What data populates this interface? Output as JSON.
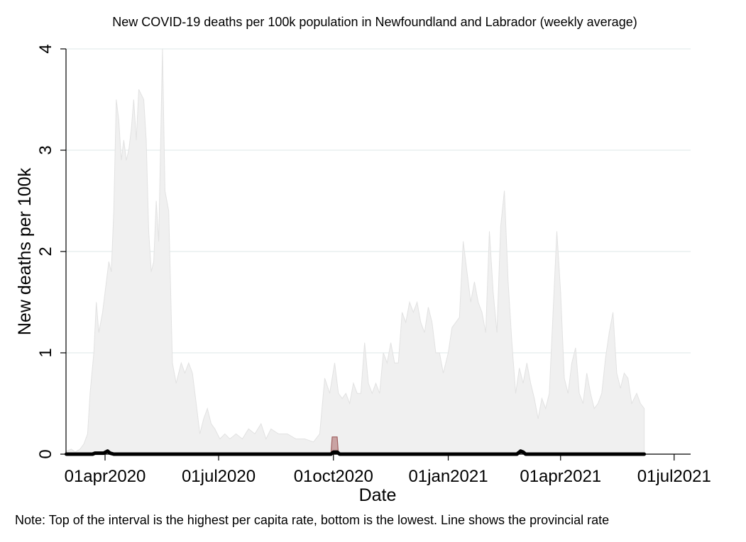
{
  "chart_data": {
    "type": "area",
    "title": "New COVID-19 deaths per 100k population in Newfoundland and Labrador (weekly average)",
    "xlabel": "Date",
    "ylabel": "New deaths per 100k",
    "note": "Note: Top of the interval is the highest per capita rate, bottom is the lowest. Line shows the provincial rate",
    "xlim": [
      "2020-03-01",
      "2021-07-01"
    ],
    "ylim": [
      0,
      4
    ],
    "grid": true,
    "x_ticks": [
      {
        "date": "2020-04-01",
        "label": "01apr2020"
      },
      {
        "date": "2020-07-01",
        "label": "01jul2020"
      },
      {
        "date": "2020-10-01",
        "label": "01oct2020"
      },
      {
        "date": "2021-01-01",
        "label": "01jan2021"
      },
      {
        "date": "2021-04-01",
        "label": "01apr2021"
      },
      {
        "date": "2021-07-01",
        "label": "01jul2021"
      }
    ],
    "y_ticks": [
      {
        "value": 0,
        "label": "0"
      },
      {
        "value": 1,
        "label": "1"
      },
      {
        "value": 2,
        "label": "2"
      },
      {
        "value": 3,
        "label": "3"
      },
      {
        "value": 4,
        "label": "4"
      }
    ],
    "series": [
      {
        "role": "interval-max",
        "color": "#f0f0f0",
        "points": [
          [
            "2020-03-01",
            0.03
          ],
          [
            "2020-03-05",
            0.05
          ],
          [
            "2020-03-08",
            0.02
          ],
          [
            "2020-03-12",
            0.05
          ],
          [
            "2020-03-15",
            0.1
          ],
          [
            "2020-03-18",
            0.2
          ],
          [
            "2020-03-20",
            0.6
          ],
          [
            "2020-03-23",
            1.0
          ],
          [
            "2020-03-25",
            1.5
          ],
          [
            "2020-03-27",
            1.2
          ],
          [
            "2020-03-30",
            1.4
          ],
          [
            "2020-04-02",
            1.7
          ],
          [
            "2020-04-04",
            1.9
          ],
          [
            "2020-04-06",
            1.8
          ],
          [
            "2020-04-08",
            2.4
          ],
          [
            "2020-04-10",
            3.5
          ],
          [
            "2020-04-12",
            3.3
          ],
          [
            "2020-04-14",
            2.9
          ],
          [
            "2020-04-16",
            3.1
          ],
          [
            "2020-04-18",
            2.9
          ],
          [
            "2020-04-20",
            3.0
          ],
          [
            "2020-04-22",
            3.2
          ],
          [
            "2020-04-24",
            3.5
          ],
          [
            "2020-04-26",
            3.1
          ],
          [
            "2020-04-28",
            3.6
          ],
          [
            "2020-05-02",
            3.5
          ],
          [
            "2020-05-04",
            3.1
          ],
          [
            "2020-05-06",
            2.2
          ],
          [
            "2020-05-08",
            1.8
          ],
          [
            "2020-05-10",
            1.9
          ],
          [
            "2020-05-12",
            2.5
          ],
          [
            "2020-05-14",
            2.1
          ],
          [
            "2020-05-17",
            4.0
          ],
          [
            "2020-05-19",
            2.6
          ],
          [
            "2020-05-22",
            2.4
          ],
          [
            "2020-05-25",
            0.9
          ],
          [
            "2020-05-28",
            0.7
          ],
          [
            "2020-06-01",
            0.9
          ],
          [
            "2020-06-04",
            0.8
          ],
          [
            "2020-06-07",
            0.9
          ],
          [
            "2020-06-10",
            0.8
          ],
          [
            "2020-06-13",
            0.5
          ],
          [
            "2020-06-16",
            0.2
          ],
          [
            "2020-06-19",
            0.35
          ],
          [
            "2020-06-22",
            0.45
          ],
          [
            "2020-06-25",
            0.3
          ],
          [
            "2020-06-28",
            0.25
          ],
          [
            "2020-07-02",
            0.15
          ],
          [
            "2020-07-06",
            0.2
          ],
          [
            "2020-07-10",
            0.15
          ],
          [
            "2020-07-15",
            0.2
          ],
          [
            "2020-07-20",
            0.15
          ],
          [
            "2020-07-25",
            0.25
          ],
          [
            "2020-07-30",
            0.2
          ],
          [
            "2020-08-04",
            0.3
          ],
          [
            "2020-08-08",
            0.15
          ],
          [
            "2020-08-12",
            0.25
          ],
          [
            "2020-08-18",
            0.2
          ],
          [
            "2020-08-25",
            0.2
          ],
          [
            "2020-09-01",
            0.15
          ],
          [
            "2020-09-08",
            0.15
          ],
          [
            "2020-09-15",
            0.12
          ],
          [
            "2020-09-20",
            0.2
          ],
          [
            "2020-09-24",
            0.75
          ],
          [
            "2020-09-28",
            0.6
          ],
          [
            "2020-10-02",
            0.9
          ],
          [
            "2020-10-05",
            0.6
          ],
          [
            "2020-10-08",
            0.55
          ],
          [
            "2020-10-11",
            0.6
          ],
          [
            "2020-10-14",
            0.5
          ],
          [
            "2020-10-17",
            0.7
          ],
          [
            "2020-10-20",
            0.6
          ],
          [
            "2020-10-23",
            0.6
          ],
          [
            "2020-10-26",
            1.1
          ],
          [
            "2020-10-29",
            0.7
          ],
          [
            "2020-11-01",
            0.6
          ],
          [
            "2020-11-04",
            0.7
          ],
          [
            "2020-11-07",
            0.6
          ],
          [
            "2020-11-10",
            1.0
          ],
          [
            "2020-11-13",
            0.9
          ],
          [
            "2020-11-16",
            1.1
          ],
          [
            "2020-11-19",
            0.9
          ],
          [
            "2020-11-22",
            0.9
          ],
          [
            "2020-11-25",
            1.4
          ],
          [
            "2020-11-28",
            1.3
          ],
          [
            "2020-12-01",
            1.5
          ],
          [
            "2020-12-04",
            1.4
          ],
          [
            "2020-12-07",
            1.5
          ],
          [
            "2020-12-10",
            1.3
          ],
          [
            "2020-12-13",
            1.2
          ],
          [
            "2020-12-16",
            1.45
          ],
          [
            "2020-12-19",
            1.3
          ],
          [
            "2020-12-22",
            1.0
          ],
          [
            "2020-12-25",
            1.0
          ],
          [
            "2020-12-28",
            0.8
          ],
          [
            "2021-01-01",
            1.0
          ],
          [
            "2021-01-04",
            1.25
          ],
          [
            "2021-01-07",
            1.3
          ],
          [
            "2021-01-10",
            1.35
          ],
          [
            "2021-01-13",
            2.1
          ],
          [
            "2021-01-16",
            1.8
          ],
          [
            "2021-01-19",
            1.5
          ],
          [
            "2021-01-22",
            1.7
          ],
          [
            "2021-01-25",
            1.5
          ],
          [
            "2021-01-28",
            1.4
          ],
          [
            "2021-01-31",
            1.2
          ],
          [
            "2021-02-03",
            2.2
          ],
          [
            "2021-02-06",
            1.6
          ],
          [
            "2021-02-09",
            1.2
          ],
          [
            "2021-02-12",
            2.25
          ],
          [
            "2021-02-15",
            2.6
          ],
          [
            "2021-02-18",
            1.7
          ],
          [
            "2021-02-21",
            1.1
          ],
          [
            "2021-02-24",
            0.6
          ],
          [
            "2021-02-27",
            0.85
          ],
          [
            "2021-03-02",
            0.7
          ],
          [
            "2021-03-05",
            0.9
          ],
          [
            "2021-03-08",
            0.7
          ],
          [
            "2021-03-11",
            0.55
          ],
          [
            "2021-03-14",
            0.35
          ],
          [
            "2021-03-17",
            0.55
          ],
          [
            "2021-03-20",
            0.45
          ],
          [
            "2021-03-23",
            0.6
          ],
          [
            "2021-03-26",
            1.4
          ],
          [
            "2021-03-29",
            2.2
          ],
          [
            "2021-04-01",
            1.6
          ],
          [
            "2021-04-04",
            0.75
          ],
          [
            "2021-04-07",
            0.6
          ],
          [
            "2021-04-10",
            0.9
          ],
          [
            "2021-04-13",
            1.05
          ],
          [
            "2021-04-16",
            0.6
          ],
          [
            "2021-04-19",
            0.5
          ],
          [
            "2021-04-22",
            0.8
          ],
          [
            "2021-04-25",
            0.6
          ],
          [
            "2021-04-28",
            0.45
          ],
          [
            "2021-05-01",
            0.5
          ],
          [
            "2021-05-04",
            0.6
          ],
          [
            "2021-05-07",
            0.95
          ],
          [
            "2021-05-10",
            1.2
          ],
          [
            "2021-05-13",
            1.4
          ],
          [
            "2021-05-16",
            0.8
          ],
          [
            "2021-05-19",
            0.65
          ],
          [
            "2021-05-22",
            0.8
          ],
          [
            "2021-05-25",
            0.75
          ],
          [
            "2021-05-28",
            0.5
          ],
          [
            "2021-06-01",
            0.6
          ],
          [
            "2021-06-04",
            0.5
          ],
          [
            "2021-06-07",
            0.45
          ]
        ]
      },
      {
        "role": "highlight-interval",
        "color": "#c9a3a3",
        "points": [
          [
            "2020-09-29",
            0
          ],
          [
            "2020-09-30",
            0.17
          ],
          [
            "2020-10-04",
            0.17
          ],
          [
            "2020-10-05",
            0
          ]
        ]
      },
      {
        "role": "provincial-rate",
        "color": "#000000",
        "points": [
          [
            "2020-03-01",
            0
          ],
          [
            "2020-03-22",
            0
          ],
          [
            "2020-03-24",
            0.01
          ],
          [
            "2020-03-31",
            0.01
          ],
          [
            "2020-04-03",
            0.03
          ],
          [
            "2020-04-05",
            0.01
          ],
          [
            "2020-04-08",
            0
          ],
          [
            "2020-09-29",
            0
          ],
          [
            "2020-10-01",
            0.02
          ],
          [
            "2020-10-04",
            0.02
          ],
          [
            "2020-10-06",
            0
          ],
          [
            "2021-02-25",
            0
          ],
          [
            "2021-02-28",
            0.03
          ],
          [
            "2021-03-02",
            0.02
          ],
          [
            "2021-03-04",
            0
          ],
          [
            "2021-06-07",
            0
          ]
        ]
      }
    ]
  }
}
